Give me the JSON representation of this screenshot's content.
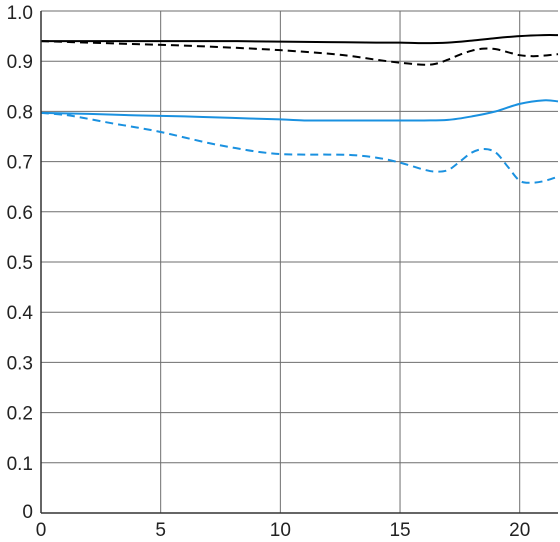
{
  "chart_data": {
    "type": "line",
    "title": "",
    "xlabel": "",
    "ylabel": "",
    "xlim": [
      0,
      21.6
    ],
    "ylim": [
      0,
      1.0
    ],
    "x_ticks": [
      0,
      5,
      10,
      15,
      20
    ],
    "x_tick_labels": [
      "0",
      "5",
      "10",
      "15",
      "20"
    ],
    "y_ticks": [
      0,
      0.1,
      0.2,
      0.3,
      0.4,
      0.5,
      0.6,
      0.7,
      0.8,
      0.9,
      1.0
    ],
    "y_tick_labels": [
      "0",
      "0.1",
      "0.2",
      "0.3",
      "0.4",
      "0.5",
      "0.6",
      "0.7",
      "0.8",
      "0.9",
      "1.0"
    ],
    "grid": true,
    "legend": "none",
    "series": [
      {
        "color": "#000000",
        "dash": "solid",
        "points": [
          [
            0,
            0.94
          ],
          [
            2,
            0.94
          ],
          [
            4,
            0.94
          ],
          [
            6,
            0.94
          ],
          [
            8,
            0.94
          ],
          [
            10,
            0.939
          ],
          [
            12,
            0.938
          ],
          [
            14,
            0.937
          ],
          [
            15,
            0.937
          ],
          [
            16,
            0.936
          ],
          [
            17,
            0.937
          ],
          [
            18,
            0.941
          ],
          [
            19,
            0.946
          ],
          [
            20,
            0.95
          ],
          [
            21,
            0.952
          ],
          [
            21.6,
            0.952
          ]
        ]
      },
      {
        "color": "#000000",
        "dash": "dashed",
        "points": [
          [
            0,
            0.94
          ],
          [
            2,
            0.937
          ],
          [
            4,
            0.934
          ],
          [
            6,
            0.931
          ],
          [
            8,
            0.927
          ],
          [
            10,
            0.922
          ],
          [
            12,
            0.915
          ],
          [
            13,
            0.91
          ],
          [
            14,
            0.903
          ],
          [
            15,
            0.897
          ],
          [
            16,
            0.893
          ],
          [
            16.5,
            0.895
          ],
          [
            17,
            0.903
          ],
          [
            17.5,
            0.913
          ],
          [
            18,
            0.921
          ],
          [
            18.5,
            0.925
          ],
          [
            19,
            0.924
          ],
          [
            19.5,
            0.918
          ],
          [
            20,
            0.912
          ],
          [
            20.5,
            0.91
          ],
          [
            21,
            0.911
          ],
          [
            21.6,
            0.914
          ]
        ]
      },
      {
        "color": "#1a91e0",
        "dash": "solid",
        "points": [
          [
            0,
            0.797
          ],
          [
            2,
            0.795
          ],
          [
            4,
            0.792
          ],
          [
            6,
            0.79
          ],
          [
            8,
            0.787
          ],
          [
            10,
            0.784
          ],
          [
            11,
            0.782
          ],
          [
            12,
            0.782
          ],
          [
            14,
            0.782
          ],
          [
            15,
            0.782
          ],
          [
            16,
            0.782
          ],
          [
            17,
            0.783
          ],
          [
            18,
            0.79
          ],
          [
            19,
            0.8
          ],
          [
            20,
            0.815
          ],
          [
            21,
            0.822
          ],
          [
            21.6,
            0.82
          ]
        ]
      },
      {
        "color": "#1a91e0",
        "dash": "dashed",
        "points": [
          [
            0,
            0.797
          ],
          [
            1,
            0.793
          ],
          [
            2,
            0.785
          ],
          [
            3,
            0.776
          ],
          [
            4,
            0.768
          ],
          [
            5,
            0.759
          ],
          [
            6,
            0.748
          ],
          [
            7,
            0.737
          ],
          [
            8,
            0.728
          ],
          [
            9,
            0.72
          ],
          [
            10,
            0.715
          ],
          [
            11,
            0.714
          ],
          [
            12,
            0.714
          ],
          [
            13,
            0.713
          ],
          [
            14,
            0.708
          ],
          [
            15,
            0.698
          ],
          [
            16,
            0.684
          ],
          [
            16.5,
            0.68
          ],
          [
            17,
            0.683
          ],
          [
            17.5,
            0.7
          ],
          [
            18,
            0.718
          ],
          [
            18.5,
            0.725
          ],
          [
            19,
            0.718
          ],
          [
            19.5,
            0.69
          ],
          [
            20,
            0.662
          ],
          [
            20.5,
            0.658
          ],
          [
            21,
            0.661
          ],
          [
            21.6,
            0.67
          ]
        ]
      }
    ]
  }
}
